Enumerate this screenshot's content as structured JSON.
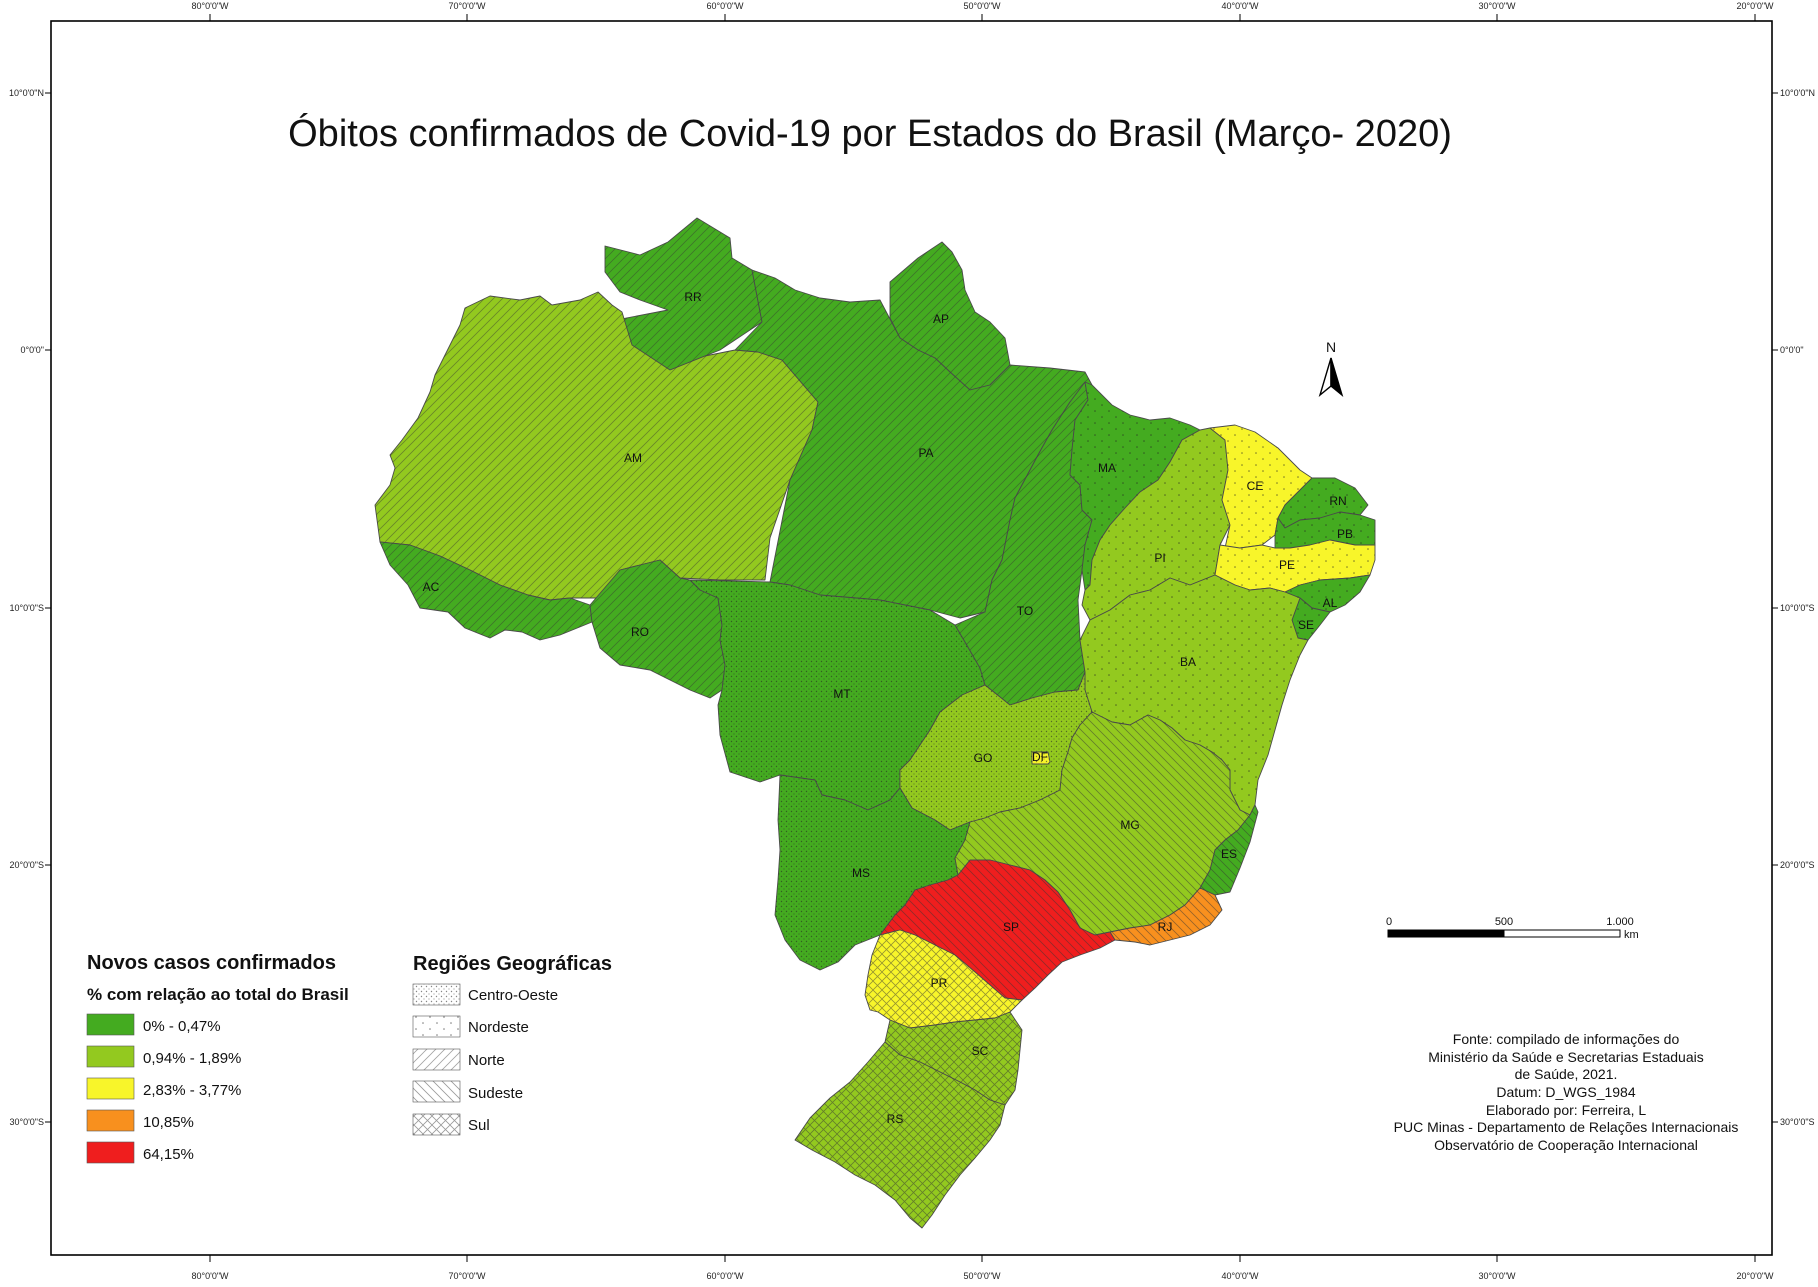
{
  "title": "Óbitos confirmados de Covid-19 por Estados do Brasil (Março- 2020)",
  "colors": {
    "class1": "#44ab20",
    "class2": "#93c91f",
    "class3": "#f8f52a",
    "class4": "#f8901e",
    "class5": "#ef1e1e",
    "boundary": "#4a4a4a"
  },
  "graticule": {
    "top_labels": [
      "80°0'0\"W",
      "70°0'0\"W",
      "60°0'0\"W",
      "50°0'0\"W",
      "40°0'0\"W",
      "30°0'0\"W",
      "20°0'0\"W"
    ],
    "bottom_labels": [
      "80°0'0\"W",
      "70°0'0\"W",
      "60°0'0\"W",
      "50°0'0\"W",
      "40°0'0\"W",
      "30°0'0\"W",
      "20°0'0\"W"
    ],
    "left_labels": [
      "10°0'0\"N",
      "0°0'0\"",
      "10°0'0\"S",
      "20°0'0\"S",
      "30°0'0\"S"
    ],
    "right_labels": [
      "10°0'0\"N",
      "0°0'0\"",
      "10°0'0\"S",
      "20°0'0\"S",
      "30°0'0\"S"
    ]
  },
  "states": [
    {
      "abbr": "RR",
      "class": 1,
      "region": "Norte"
    },
    {
      "abbr": "AP",
      "class": 1,
      "region": "Norte"
    },
    {
      "abbr": "AM",
      "class": 2,
      "region": "Norte"
    },
    {
      "abbr": "PA",
      "class": 1,
      "region": "Norte"
    },
    {
      "abbr": "AC",
      "class": 1,
      "region": "Norte"
    },
    {
      "abbr": "RO",
      "class": 1,
      "region": "Norte"
    },
    {
      "abbr": "TO",
      "class": 1,
      "region": "Norte"
    },
    {
      "abbr": "MA",
      "class": 1,
      "region": "Nordeste"
    },
    {
      "abbr": "PI",
      "class": 2,
      "region": "Nordeste"
    },
    {
      "abbr": "CE",
      "class": 3,
      "region": "Nordeste"
    },
    {
      "abbr": "RN",
      "class": 1,
      "region": "Nordeste"
    },
    {
      "abbr": "PB",
      "class": 1,
      "region": "Nordeste"
    },
    {
      "abbr": "PE",
      "class": 3,
      "region": "Nordeste"
    },
    {
      "abbr": "AL",
      "class": 1,
      "region": "Nordeste"
    },
    {
      "abbr": "SE",
      "class": 1,
      "region": "Nordeste"
    },
    {
      "abbr": "BA",
      "class": 2,
      "region": "Nordeste"
    },
    {
      "abbr": "MT",
      "class": 1,
      "region": "Centro-Oeste"
    },
    {
      "abbr": "GO",
      "class": 2,
      "region": "Centro-Oeste"
    },
    {
      "abbr": "DF",
      "class": 3,
      "region": "Centro-Oeste"
    },
    {
      "abbr": "MS",
      "class": 1,
      "region": "Centro-Oeste"
    },
    {
      "abbr": "MG",
      "class": 2,
      "region": "Sudeste"
    },
    {
      "abbr": "ES",
      "class": 1,
      "region": "Sudeste"
    },
    {
      "abbr": "RJ",
      "class": 4,
      "region": "Sudeste"
    },
    {
      "abbr": "SP",
      "class": 5,
      "region": "Sudeste"
    },
    {
      "abbr": "PR",
      "class": 3,
      "region": "Sul"
    },
    {
      "abbr": "SC",
      "class": 2,
      "region": "Sul"
    },
    {
      "abbr": "RS",
      "class": 2,
      "region": "Sul"
    }
  ],
  "north_arrow": {
    "label": "N"
  },
  "scale_bar": {
    "labels": [
      "0",
      "500",
      "1.000"
    ],
    "unit": "km"
  },
  "legend": {
    "title": "Novos casos confirmados",
    "subtitle": "% com relação ao total do Brasil",
    "classes": [
      {
        "label": "0% - 0,47%",
        "color": "#44ab20"
      },
      {
        "label": "0,94% - 1,89%",
        "color": "#93c91f"
      },
      {
        "label": "2,83% - 3,77%",
        "color": "#f8f52a"
      },
      {
        "label": "10,85%",
        "color": "#f8901e"
      },
      {
        "label": "64,15%",
        "color": "#ef1e1e"
      }
    ]
  },
  "regions_legend": {
    "title": "Regiões Geográficas",
    "items": [
      {
        "label": "Centro-Oeste",
        "pattern": "dots"
      },
      {
        "label": "Nordeste",
        "pattern": "sparse-dots"
      },
      {
        "label": "Norte",
        "pattern": "hatch-forward"
      },
      {
        "label": "Sudeste",
        "pattern": "hatch-back"
      },
      {
        "label": "Sul",
        "pattern": "crosshatch"
      }
    ]
  },
  "source_lines": [
    "Fonte: compilado de informações do",
    "Ministério da Saúde e Secretarias Estaduais",
    "de Saúde, 2021.",
    "Datum: D_WGS_1984",
    "Elaborado por: Ferreira, L",
    "PUC Minas - Departamento de Relações Internacionais",
    "Observatório de Cooperação Internacional"
  ]
}
